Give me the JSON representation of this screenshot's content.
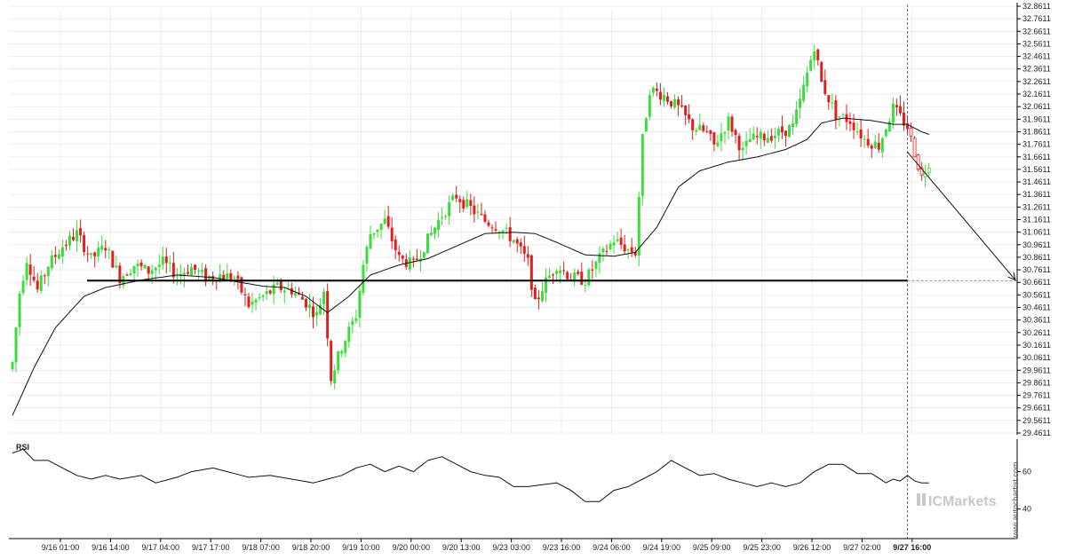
{
  "chart_data": {
    "type": "candlestick",
    "colors": {
      "up": "#3ddc3d",
      "down": "#e02020",
      "ma": "#111111",
      "grid": "#e4e4e4",
      "line": "#000000"
    },
    "ylim": [
      29.4611,
      32.8611
    ],
    "y_ticks": [
      "32.8611",
      "32.7611",
      "32.6611",
      "32.5611",
      "32.4611",
      "32.3611",
      "32.2611",
      "32.1611",
      "32.0611",
      "31.9611",
      "31.8611",
      "31.7611",
      "31.6611",
      "31.5611",
      "31.4611",
      "31.3611",
      "31.2611",
      "31.1611",
      "31.0611",
      "30.9611",
      "30.8611",
      "30.7611",
      "30.6611",
      "30.5611",
      "30.4611",
      "30.3611",
      "30.2611",
      "30.1611",
      "30.0611",
      "29.9611",
      "29.8611",
      "29.7611",
      "29.6611",
      "29.5611",
      "29.4611"
    ],
    "x_ticks": [
      "9/16 01:00",
      "9/16 14:00",
      "9/17 04:00",
      "9/17 17:00",
      "9/18 07:00",
      "9/18 20:00",
      "9/19 10:00",
      "9/20 00:00",
      "9/20 13:00",
      "9/23 03:00",
      "9/23 16:00",
      "9/24 06:00",
      "9/24 19:00",
      "9/25 09:00",
      "9/25 23:00",
      "9/26 12:00",
      "9/27 02:00",
      "9/27 16:00"
    ],
    "x_ticks_bold": [
      false,
      false,
      false,
      false,
      false,
      false,
      false,
      false,
      false,
      false,
      false,
      false,
      false,
      false,
      false,
      false,
      false,
      true
    ],
    "close_anchors": [
      [
        0,
        30.02
      ],
      [
        2,
        30.58
      ],
      [
        4,
        30.85
      ],
      [
        7,
        30.6
      ],
      [
        10,
        30.8
      ],
      [
        14,
        30.95
      ],
      [
        18,
        31.05
      ],
      [
        22,
        30.85
      ],
      [
        26,
        30.95
      ],
      [
        30,
        30.7
      ],
      [
        34,
        30.8
      ],
      [
        38,
        30.75
      ],
      [
        42,
        30.82
      ],
      [
        46,
        30.72
      ],
      [
        50,
        30.78
      ],
      [
        54,
        30.7
      ],
      [
        58,
        30.72
      ],
      [
        62,
        30.7
      ],
      [
        66,
        30.48
      ],
      [
        70,
        30.55
      ],
      [
        74,
        30.62
      ],
      [
        78,
        30.6
      ],
      [
        82,
        30.5
      ],
      [
        85,
        30.4
      ],
      [
        87,
        30.6
      ],
      [
        89,
        29.9
      ],
      [
        92,
        30.15
      ],
      [
        96,
        30.4
      ],
      [
        98,
        30.8
      ],
      [
        100,
        31.05
      ],
      [
        104,
        31.15
      ],
      [
        108,
        30.85
      ],
      [
        112,
        30.8
      ],
      [
        116,
        31.0
      ],
      [
        120,
        31.2
      ],
      [
        124,
        31.35
      ],
      [
        128,
        31.25
      ],
      [
        132,
        31.15
      ],
      [
        136,
        31.1
      ],
      [
        140,
        31.0
      ],
      [
        144,
        30.82
      ],
      [
        146,
        30.48
      ],
      [
        148,
        30.62
      ],
      [
        152,
        30.8
      ],
      [
        156,
        30.7
      ],
      [
        160,
        30.68
      ],
      [
        164,
        30.85
      ],
      [
        168,
        31.0
      ],
      [
        172,
        30.92
      ],
      [
        174,
        30.9
      ],
      [
        176,
        31.8
      ],
      [
        178,
        32.2
      ],
      [
        182,
        32.15
      ],
      [
        186,
        32.05
      ],
      [
        190,
        31.9
      ],
      [
        194,
        31.85
      ],
      [
        196,
        31.75
      ],
      [
        200,
        31.95
      ],
      [
        204,
        31.7
      ],
      [
        206,
        31.8
      ],
      [
        210,
        31.82
      ],
      [
        214,
        31.85
      ],
      [
        218,
        31.9
      ],
      [
        220,
        32.1
      ],
      [
        224,
        32.55
      ],
      [
        226,
        32.25
      ],
      [
        230,
        32.0
      ],
      [
        234,
        31.95
      ],
      [
        238,
        31.8
      ],
      [
        242,
        31.75
      ],
      [
        246,
        32.05
      ],
      [
        250,
        31.9
      ],
      [
        252,
        31.7
      ],
      [
        254,
        31.5
      ],
      [
        256,
        31.62
      ]
    ],
    "ma_anchors": [
      [
        0,
        29.6
      ],
      [
        6,
        29.98
      ],
      [
        12,
        30.3
      ],
      [
        20,
        30.55
      ],
      [
        26,
        30.62
      ],
      [
        36,
        30.68
      ],
      [
        46,
        30.72
      ],
      [
        56,
        30.7
      ],
      [
        64,
        30.66
      ],
      [
        70,
        30.63
      ],
      [
        76,
        30.62
      ],
      [
        82,
        30.55
      ],
      [
        88,
        30.42
      ],
      [
        94,
        30.55
      ],
      [
        100,
        30.72
      ],
      [
        108,
        30.8
      ],
      [
        116,
        30.85
      ],
      [
        124,
        30.95
      ],
      [
        132,
        31.05
      ],
      [
        140,
        31.06
      ],
      [
        146,
        31.05
      ],
      [
        152,
        30.98
      ],
      [
        160,
        30.88
      ],
      [
        168,
        30.87
      ],
      [
        174,
        30.9
      ],
      [
        180,
        31.1
      ],
      [
        186,
        31.42
      ],
      [
        192,
        31.55
      ],
      [
        200,
        31.62
      ],
      [
        208,
        31.66
      ],
      [
        216,
        31.72
      ],
      [
        222,
        31.8
      ],
      [
        226,
        31.93
      ],
      [
        232,
        31.97
      ],
      [
        240,
        31.95
      ],
      [
        246,
        31.92
      ],
      [
        250,
        31.92
      ],
      [
        254,
        31.86
      ],
      [
        256,
        31.84
      ]
    ],
    "support_level": 30.675,
    "projection": {
      "from_bar": 250,
      "from_value": 31.7,
      "to_value": 30.68
    },
    "current_bar": 250,
    "rsi": {
      "label": "RSI",
      "ticks": [
        "60",
        "40"
      ],
      "ylim": [
        27.5,
        75
      ],
      "anchors": [
        [
          0,
          70
        ],
        [
          3,
          72
        ],
        [
          6,
          66
        ],
        [
          10,
          66
        ],
        [
          14,
          62
        ],
        [
          18,
          58
        ],
        [
          22,
          56
        ],
        [
          26,
          58
        ],
        [
          30,
          56
        ],
        [
          36,
          58
        ],
        [
          40,
          54
        ],
        [
          46,
          57
        ],
        [
          50,
          60
        ],
        [
          56,
          62
        ],
        [
          62,
          59
        ],
        [
          66,
          57
        ],
        [
          72,
          58
        ],
        [
          78,
          56
        ],
        [
          84,
          54
        ],
        [
          88,
          56
        ],
        [
          92,
          58
        ],
        [
          96,
          62
        ],
        [
          100,
          64
        ],
        [
          104,
          60
        ],
        [
          108,
          63
        ],
        [
          112,
          60
        ],
        [
          116,
          66
        ],
        [
          120,
          68
        ],
        [
          124,
          64
        ],
        [
          128,
          60
        ],
        [
          132,
          58
        ],
        [
          136,
          57
        ],
        [
          140,
          52
        ],
        [
          144,
          52
        ],
        [
          148,
          53
        ],
        [
          152,
          54
        ],
        [
          156,
          50
        ],
        [
          160,
          44
        ],
        [
          164,
          44
        ],
        [
          168,
          50
        ],
        [
          172,
          52
        ],
        [
          176,
          56
        ],
        [
          180,
          60
        ],
        [
          184,
          66
        ],
        [
          188,
          62
        ],
        [
          192,
          58
        ],
        [
          196,
          59
        ],
        [
          200,
          56
        ],
        [
          204,
          54
        ],
        [
          208,
          52
        ],
        [
          212,
          54
        ],
        [
          216,
          52
        ],
        [
          220,
          54
        ],
        [
          224,
          60
        ],
        [
          228,
          64
        ],
        [
          232,
          64
        ],
        [
          236,
          59
        ],
        [
          240,
          59
        ],
        [
          244,
          54
        ],
        [
          246,
          56
        ],
        [
          248,
          55
        ],
        [
          250,
          58
        ],
        [
          252,
          55
        ],
        [
          254,
          54
        ],
        [
          256,
          54
        ]
      ]
    }
  },
  "watermark": "www.autochartist.com",
  "brand": "ICMarkets"
}
